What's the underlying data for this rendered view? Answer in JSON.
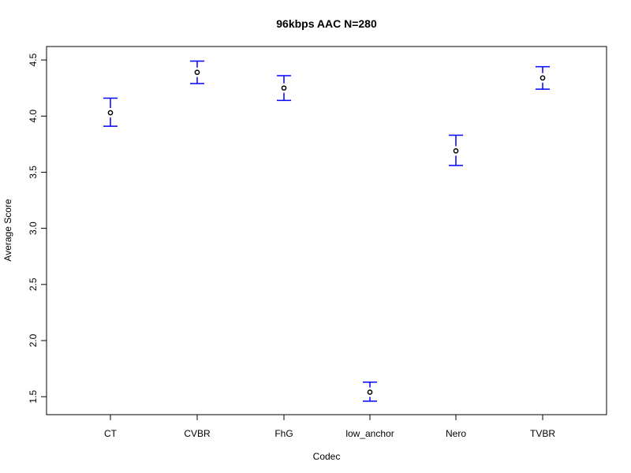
{
  "chart_data": {
    "type": "errorbar",
    "title": "96kbps AAC N=280",
    "xlabel": "Codec",
    "ylabel": "Average Score",
    "ylim": [
      1.34,
      4.62
    ],
    "yticks": [
      1.5,
      2.0,
      2.5,
      3.0,
      3.5,
      4.0,
      4.5
    ],
    "ytick_labels": [
      "1.5",
      "2.0",
      "2.5",
      "3.0",
      "3.5",
      "4.0",
      "4.5"
    ],
    "grid": false,
    "legend": "none",
    "categories": [
      "CT",
      "CVBR",
      "FhG",
      "low_anchor",
      "Nero",
      "TVBR"
    ],
    "means": [
      4.03,
      4.39,
      4.25,
      1.54,
      3.69,
      4.34
    ],
    "upper": [
      4.16,
      4.49,
      4.36,
      1.63,
      3.83,
      4.44
    ],
    "lower": [
      3.91,
      4.29,
      4.14,
      1.46,
      3.56,
      4.24
    ],
    "colors": {
      "errorbar": "#0000ff",
      "point": "#000000",
      "axis": "#000000"
    }
  }
}
